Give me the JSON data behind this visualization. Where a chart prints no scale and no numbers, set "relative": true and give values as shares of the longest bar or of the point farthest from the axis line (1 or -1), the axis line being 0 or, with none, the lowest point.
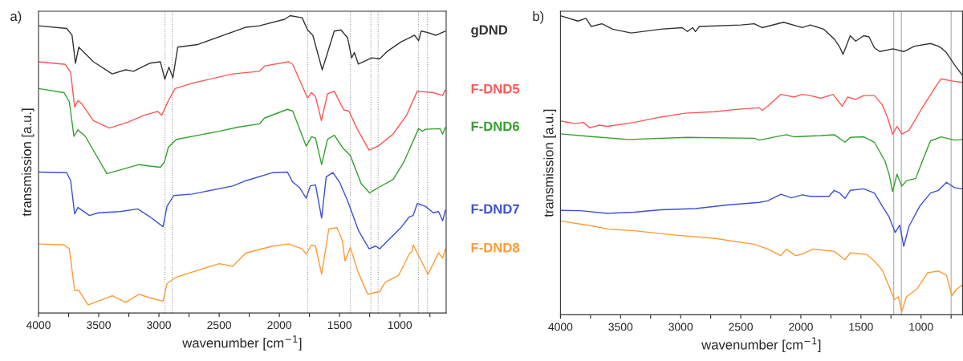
{
  "chart_data": [
    {
      "type": "line",
      "title": "a)",
      "xlabel": "wavenumber [cm$^{−1}$]",
      "ylabel": "transmission [a.u.]",
      "relative": true,
      "legend": "right",
      "grid": false,
      "line_style": "solid",
      "marker": "none",
      "xlim": [
        4000,
        615
      ],
      "xticks": [
        4000,
        {
          "value": 3750,
          "label": null
        },
        3500,
        {
          "value": 3250,
          "label": null
        },
        3000,
        {
          "value": 2750,
          "label": null
        },
        2500,
        {
          "value": 2250,
          "label": null
        },
        2000,
        {
          "value": 1750,
          "label": null
        },
        1500,
        {
          "value": 1250,
          "label": null
        },
        1000,
        {
          "value": 750,
          "label": null
        }
      ],
      "ref_lines": [
        {
          "axis": "x",
          "value": 2950,
          "color": "#999999",
          "line_style": "dotted"
        },
        {
          "axis": "x",
          "value": 2890,
          "color": "#999999",
          "line_style": "dotted"
        },
        {
          "axis": "x",
          "value": 1765,
          "color": "#999999",
          "line_style": "dotted"
        },
        {
          "axis": "x",
          "value": 1410,
          "color": "#999999",
          "line_style": "dotted"
        },
        {
          "axis": "x",
          "value": 1240,
          "color": "#999999",
          "line_style": "dotted"
        },
        {
          "axis": "x",
          "value": 1180,
          "color": "#999999",
          "line_style": "dotted"
        },
        {
          "axis": "x",
          "value": 845,
          "color": "#999999",
          "line_style": "dotted"
        },
        {
          "axis": "x",
          "value": 770,
          "color": "#999999",
          "line_style": "dotted"
        }
      ],
      "series": [
        {
          "name": "gDND",
          "color": "#333333",
          "x": [
            4000,
            3766,
            3722,
            3693,
            3666,
            3544,
            3388,
            3277,
            3211,
            3077,
            2988,
            2951,
            2917,
            2884,
            2844,
            2677,
            2277,
            2166,
            1955,
            1911,
            1811,
            1766,
            1722,
            1644,
            1544,
            1489,
            1433,
            1400,
            1377,
            1344,
            1233,
            1166,
            1100,
            989,
            877,
            844,
            822,
            766,
            700,
            622
          ],
          "values": [
            0.966,
            0.957,
            0.935,
            0.84,
            0.894,
            0.845,
            0.804,
            0.818,
            0.813,
            0.84,
            0.845,
            0.786,
            0.827,
            0.791,
            0.894,
            0.903,
            0.961,
            0.966,
            0.988,
            1.0,
            0.993,
            0.952,
            0.934,
            0.818,
            0.948,
            0.952,
            0.925,
            0.858,
            0.876,
            0.837,
            0.858,
            0.855,
            0.881,
            0.912,
            0.934,
            0.916,
            0.948,
            0.943,
            0.934,
            0.948
          ]
        },
        {
          "name": "F-DND5",
          "color": "#ff5555",
          "x": [
            4000,
            3777,
            3733,
            3700,
            3673,
            3644,
            3544,
            3411,
            3255,
            3122,
            3011,
            2977,
            2922,
            2866,
            2722,
            2388,
            2166,
            2122,
            1922,
            1889,
            1766,
            1733,
            1700,
            1651,
            1600,
            1544,
            1466,
            1422,
            1355,
            1255,
            1177,
            1055,
            944,
            855,
            722,
            644,
            622
          ],
          "values": [
            0.845,
            0.836,
            0.809,
            0.692,
            0.714,
            0.705,
            0.647,
            0.622,
            0.642,
            0.665,
            0.678,
            0.665,
            0.714,
            0.755,
            0.773,
            0.804,
            0.813,
            0.831,
            0.845,
            0.836,
            0.723,
            0.741,
            0.728,
            0.647,
            0.737,
            0.746,
            0.683,
            0.679,
            0.62,
            0.548,
            0.562,
            0.602,
            0.665,
            0.746,
            0.741,
            0.732,
            0.75
          ]
        },
        {
          "name": "F-DND6",
          "color": "#33a02c",
          "x": [
            4000,
            3788,
            3744,
            3706,
            3673,
            3611,
            3433,
            3322,
            3166,
            3077,
            2988,
            2955,
            2922,
            2855,
            2500,
            2344,
            2166,
            2122,
            1933,
            1889,
            1777,
            1733,
            1700,
            1649,
            1600,
            1544,
            1477,
            1411,
            1322,
            1251,
            1177,
            1055,
            966,
            844,
            811,
            788,
            666,
            644,
            622
          ],
          "values": [
            0.755,
            0.741,
            0.71,
            0.594,
            0.616,
            0.594,
            0.469,
            0.481,
            0.499,
            0.494,
            0.49,
            0.508,
            0.557,
            0.584,
            0.611,
            0.625,
            0.636,
            0.656,
            0.685,
            0.679,
            0.561,
            0.593,
            0.588,
            0.499,
            0.584,
            0.598,
            0.557,
            0.53,
            0.436,
            0.404,
            0.422,
            0.449,
            0.508,
            0.62,
            0.611,
            0.618,
            0.62,
            0.602,
            0.624
          ]
        },
        {
          "name": "F-DND7",
          "color": "#3d4fd6",
          "x": [
            4000,
            3766,
            3733,
            3700,
            3673,
            3577,
            3500,
            3322,
            3177,
            3077,
            2966,
            2933,
            2877,
            2722,
            2388,
            2277,
            2055,
            1933,
            1889,
            1833,
            1777,
            1744,
            1700,
            1649,
            1611,
            1555,
            1500,
            1433,
            1344,
            1255,
            1200,
            1166,
            1100,
            989,
            922,
            889,
            855,
            788,
            722,
            678,
            644,
            622
          ],
          "values": [
            0.474,
            0.472,
            0.445,
            0.333,
            0.355,
            0.328,
            0.337,
            0.341,
            0.35,
            0.324,
            0.29,
            0.359,
            0.395,
            0.4,
            0.427,
            0.445,
            0.472,
            0.474,
            0.44,
            0.422,
            0.386,
            0.427,
            0.431,
            0.319,
            0.458,
            0.472,
            0.44,
            0.377,
            0.278,
            0.216,
            0.225,
            0.216,
            0.243,
            0.288,
            0.323,
            0.328,
            0.368,
            0.359,
            0.337,
            0.341,
            0.31,
            0.346
          ]
        },
        {
          "name": "F-DND8",
          "color": "#ff9a33",
          "x": [
            4000,
            3788,
            3744,
            3700,
            3666,
            3588,
            3388,
            3277,
            3166,
            3055,
            2966,
            2933,
            2855,
            2500,
            2388,
            2277,
            2055,
            1922,
            1811,
            1777,
            1733,
            1700,
            1649,
            1589,
            1522,
            1477,
            1455,
            1411,
            1344,
            1266,
            1166,
            1122,
            1011,
            922,
            900,
            889,
            855,
            766,
            722,
            678,
            644,
            622
          ],
          "values": [
            0.232,
            0.229,
            0.216,
            0.076,
            0.076,
            0.027,
            0.058,
            0.036,
            0.063,
            0.049,
            0.04,
            0.099,
            0.121,
            0.166,
            0.157,
            0.202,
            0.225,
            0.232,
            0.216,
            0.198,
            0.229,
            0.225,
            0.13,
            0.283,
            0.287,
            0.243,
            0.175,
            0.22,
            0.135,
            0.063,
            0.072,
            0.103,
            0.126,
            0.198,
            0.207,
            0.229,
            0.202,
            0.13,
            0.166,
            0.202,
            0.184,
            0.216
          ]
        }
      ]
    },
    {
      "type": "line",
      "title": "b)",
      "xlabel": "wavenumber [cm$^{−1}$]",
      "ylabel": "transmission [a.u.]",
      "relative": true,
      "legend": false,
      "grid": false,
      "line_style": "solid",
      "marker": "none",
      "xlim": [
        4000,
        655
      ],
      "xticks": [
        4000,
        {
          "value": 3750,
          "label": null
        },
        3500,
        {
          "value": 3250,
          "label": null
        },
        3000,
        {
          "value": 2750,
          "label": null
        },
        2500,
        {
          "value": 2250,
          "label": null
        },
        2000,
        {
          "value": 1750,
          "label": null
        },
        1500,
        {
          "value": 1250,
          "label": null
        },
        1000,
        {
          "value": 750,
          "label": null
        }
      ],
      "ref_lines": [
        {
          "axis": "x",
          "value": 1227,
          "color": "#aaaaaa",
          "line_style": "solid"
        },
        {
          "axis": "x",
          "value": 1164,
          "color": "#aaaaaa",
          "line_style": "solid"
        },
        {
          "axis": "x",
          "value": 750,
          "color": "#aaaaaa",
          "line_style": "solid"
        }
      ],
      "series": [
        {
          "color": "#333333",
          "x": [
            4000,
            3855,
            3788,
            3744,
            3655,
            3566,
            3411,
            3166,
            2988,
            2944,
            2900,
            2877,
            2844,
            2499,
            2388,
            2322,
            2144,
            1988,
            1922,
            1811,
            1722,
            1677,
            1649,
            1589,
            1544,
            1477,
            1433,
            1388,
            1344,
            1233,
            1144,
            1055,
            922,
            855,
            822,
            788,
            722,
            655
          ],
          "values": [
            1.0,
            0.982,
            0.991,
            0.964,
            0.973,
            0.955,
            0.942,
            0.955,
            0.96,
            0.947,
            0.96,
            0.947,
            0.964,
            0.969,
            0.973,
            0.96,
            0.978,
            0.96,
            0.969,
            0.955,
            0.922,
            0.895,
            0.871,
            0.933,
            0.915,
            0.933,
            0.929,
            0.893,
            0.88,
            0.889,
            0.88,
            0.898,
            0.907,
            0.898,
            0.889,
            0.876,
            0.836,
            0.8
          ]
        },
        {
          "color": "#ff5555",
          "x": [
            4000,
            3877,
            3811,
            3755,
            3677,
            3611,
            3388,
            3166,
            2966,
            2722,
            2499,
            2344,
            2322,
            2277,
            2166,
            2055,
            1988,
            1922,
            1833,
            1733,
            1700,
            1655,
            1611,
            1544,
            1477,
            1388,
            1322,
            1277,
            1237,
            1200,
            1160,
            1100,
            989,
            877,
            833,
            744,
            655
          ],
          "values": [
            0.648,
            0.639,
            0.643,
            0.625,
            0.634,
            0.63,
            0.643,
            0.661,
            0.674,
            0.679,
            0.688,
            0.692,
            0.683,
            0.697,
            0.737,
            0.728,
            0.737,
            0.733,
            0.724,
            0.737,
            0.72,
            0.697,
            0.728,
            0.72,
            0.733,
            0.733,
            0.702,
            0.657,
            0.604,
            0.63,
            0.604,
            0.617,
            0.693,
            0.764,
            0.789,
            0.782,
            0.777
          ]
        },
        {
          "color": "#33a02c",
          "x": [
            4000,
            3722,
            3433,
            2944,
            2388,
            2344,
            2122,
            2055,
            1833,
            1722,
            1633,
            1589,
            1477,
            1388,
            1300,
            1266,
            1237,
            1200,
            1160,
            1122,
            1044,
            989,
            922,
            833,
            722,
            655
          ],
          "values": [
            0.605,
            0.595,
            0.586,
            0.593,
            0.59,
            0.584,
            0.602,
            0.595,
            0.599,
            0.602,
            0.577,
            0.593,
            0.595,
            0.577,
            0.514,
            0.47,
            0.412,
            0.47,
            0.43,
            0.448,
            0.456,
            0.514,
            0.581,
            0.595,
            0.584,
            0.586
          ]
        },
        {
          "color": "#3d4fd6",
          "x": [
            4000,
            3833,
            3611,
            3388,
            3166,
            2877,
            2611,
            2344,
            2277,
            2166,
            2077,
            1988,
            1922,
            1766,
            1722,
            1677,
            1633,
            1589,
            1477,
            1388,
            1322,
            1266,
            1215,
            1177,
            1144,
            1100,
            1011,
            922,
            855,
            788,
            722,
            655
          ],
          "values": [
            0.349,
            0.348,
            0.339,
            0.343,
            0.351,
            0.355,
            0.367,
            0.376,
            0.381,
            0.403,
            0.391,
            0.401,
            0.396,
            0.396,
            0.416,
            0.407,
            0.389,
            0.416,
            0.421,
            0.407,
            0.363,
            0.327,
            0.275,
            0.3,
            0.229,
            0.296,
            0.363,
            0.407,
            0.416,
            0.443,
            0.425,
            0.421
          ]
        },
        {
          "color": "#ff9a33",
          "x": [
            4000,
            3722,
            3611,
            3388,
            3055,
            2722,
            2499,
            2388,
            2277,
            2166,
            2122,
            2044,
            1988,
            1899,
            1722,
            1633,
            1589,
            1455,
            1388,
            1322,
            1266,
            1222,
            1189,
            1160,
            1122,
            1033,
            944,
            855,
            788,
            744,
            700,
            655
          ],
          "values": [
            0.314,
            0.296,
            0.287,
            0.281,
            0.267,
            0.256,
            0.242,
            0.236,
            0.22,
            0.198,
            0.22,
            0.198,
            0.203,
            0.22,
            0.212,
            0.184,
            0.207,
            0.202,
            0.18,
            0.149,
            0.095,
            0.051,
            0.06,
            0.011,
            0.06,
            0.087,
            0.141,
            0.146,
            0.132,
            0.064,
            0.087,
            0.1
          ]
        }
      ]
    }
  ]
}
